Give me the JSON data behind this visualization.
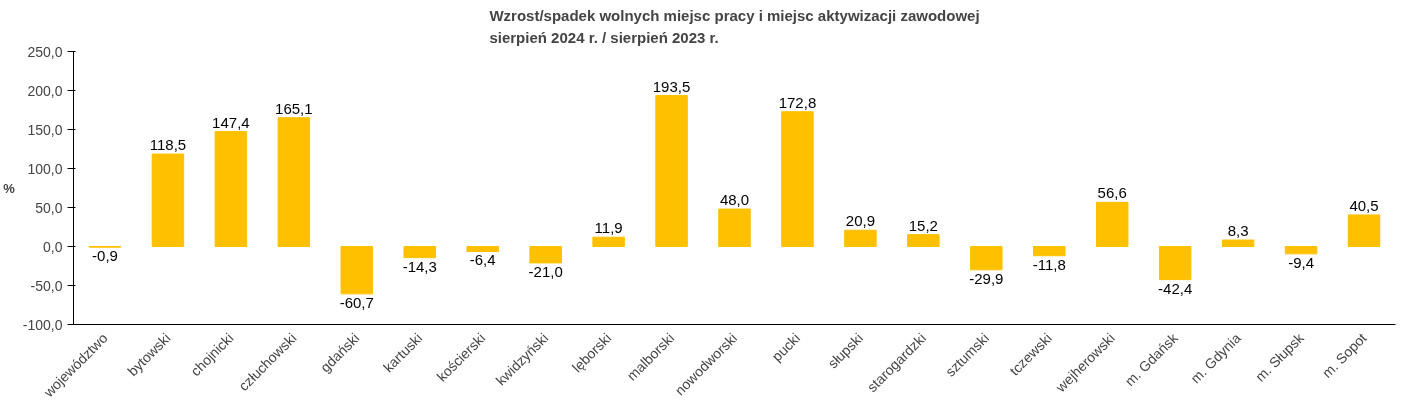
{
  "chart_data": {
    "type": "bar",
    "title": "Wzrost/spadek wolnych miejsc pracy i miejsc aktywizacji zawodowej\nsierpień 2024 r. / sierpień 2023 r.",
    "ylabel": "%",
    "categories": [
      "województwo",
      "bytowski",
      "chojnicki",
      "człuchowski",
      "gdański",
      "kartuski",
      "kościerski",
      "kwidzyński",
      "lęborski",
      "malborski",
      "nowodworski",
      "pucki",
      "słupski",
      "starogardzki",
      "sztumski",
      "tczewski",
      "wejherowski",
      "m. Gdańsk",
      "m. Gdynia",
      "m. Słupsk",
      "m. Sopot"
    ],
    "values": [
      -0.9,
      118.5,
      147.4,
      165.1,
      -60.7,
      -14.3,
      -6.4,
      -21.0,
      11.9,
      193.5,
      48.0,
      172.8,
      20.9,
      15.2,
      -29.9,
      -11.8,
      56.6,
      -42.4,
      8.3,
      -9.4,
      40.5
    ],
    "value_labels": [
      "-0,9",
      "118,5",
      "147,4",
      "165,1",
      "-60,7",
      "-14,3",
      "-6,4",
      "-21,0",
      "11,9",
      "193,5",
      "48,0",
      "172,8",
      "20,9",
      "15,2",
      "-29,9",
      "-11,8",
      "56,6",
      "-42,4",
      "8,3",
      "-9,4",
      "40,5"
    ],
    "color": "#ffc000",
    "ylim": [
      -100,
      250
    ],
    "yticks": [
      {
        "value": -100,
        "label": "-100,0"
      },
      {
        "value": -50,
        "label": "-50,0"
      },
      {
        "value": 0,
        "label": "0,0"
      },
      {
        "value": 50,
        "label": "50,0"
      },
      {
        "value": 100,
        "label": "100,0"
      },
      {
        "value": 150,
        "label": "150,0"
      },
      {
        "value": 200,
        "label": "200,0"
      },
      {
        "value": 250,
        "label": "250,0"
      }
    ],
    "grid": false
  }
}
